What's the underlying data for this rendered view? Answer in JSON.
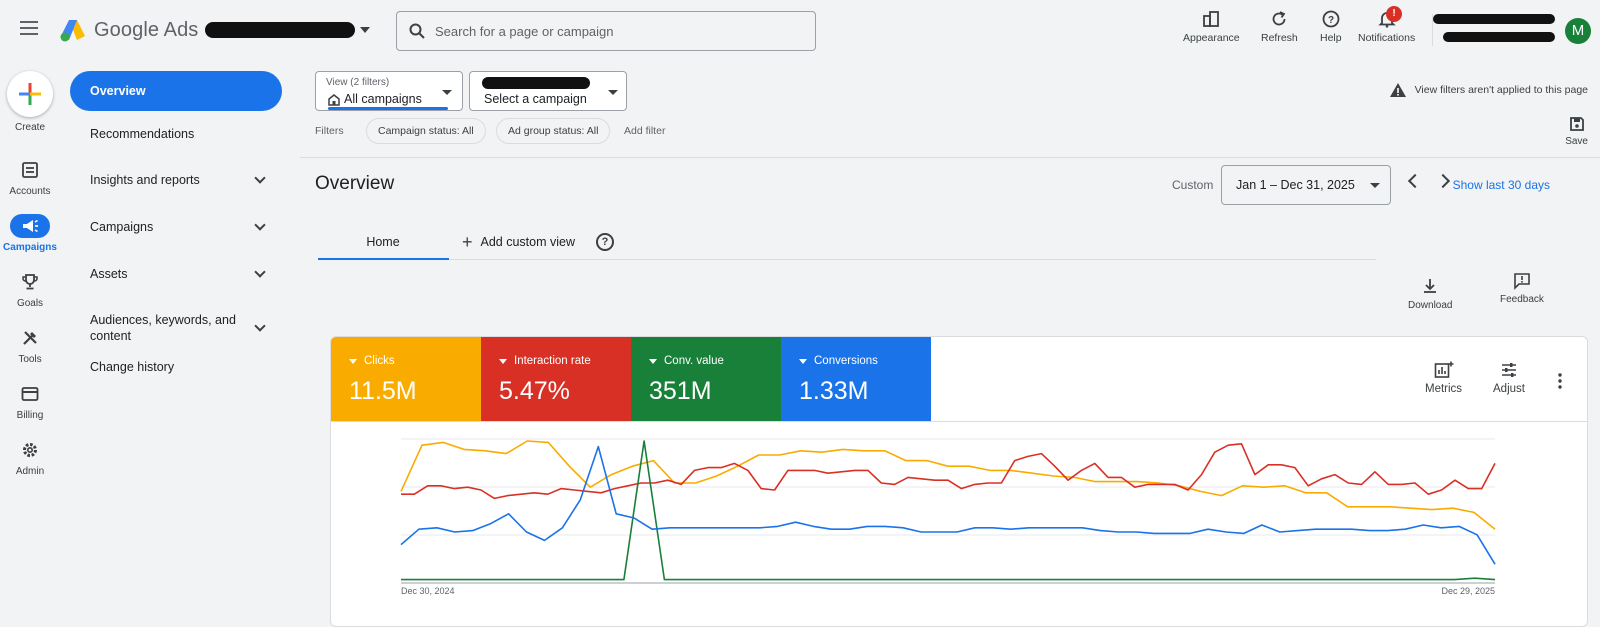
{
  "app": {
    "product_name": "Google Ads",
    "search_placeholder": "Search for a page or campaign",
    "user_initial": "M"
  },
  "top_actions": [
    {
      "label": "Appearance",
      "icon": "appearance-icon"
    },
    {
      "label": "Refresh",
      "icon": "refresh-icon"
    },
    {
      "label": "Help",
      "icon": "help-icon"
    },
    {
      "label": "Notifications",
      "icon": "bell-icon",
      "badge": "!"
    }
  ],
  "rail": [
    {
      "label": "Create",
      "icon": "plus-icon"
    },
    {
      "label": "Accounts",
      "icon": "accounts-icon"
    },
    {
      "label": "Campaigns",
      "icon": "megaphone-icon",
      "active": true
    },
    {
      "label": "Goals",
      "icon": "trophy-icon"
    },
    {
      "label": "Tools",
      "icon": "tools-icon"
    },
    {
      "label": "Billing",
      "icon": "credit-card-icon"
    },
    {
      "label": "Admin",
      "icon": "gear-icon"
    }
  ],
  "subnav": [
    {
      "label": "Overview",
      "active": true
    },
    {
      "label": "Recommendations"
    },
    {
      "label": "Insights and reports",
      "expandable": true
    },
    {
      "label": "Campaigns",
      "expandable": true
    },
    {
      "label": "Assets",
      "expandable": true
    },
    {
      "label": "Audiences, keywords, and content",
      "expandable": true
    },
    {
      "label": "Change history"
    }
  ],
  "view_selector": {
    "small_label": "View (2 filters)",
    "value": "All campaigns"
  },
  "campaign_selector": {
    "value": "Select a campaign"
  },
  "filters": {
    "label": "Filters",
    "chips": [
      "Campaign status: All",
      "Ad group status: All"
    ],
    "add_label": "Add filter"
  },
  "notice": "View filters aren't applied to this page",
  "save_label": "Save",
  "page": {
    "title": "Overview",
    "date_prefix": "Custom",
    "date_range": "Jan 1 – Dec 31, 2025",
    "show_last": "Show last 30 days"
  },
  "tabs": {
    "home": "Home",
    "add_custom": "Add custom view"
  },
  "tools": {
    "download": "Download",
    "feedback": "Feedback"
  },
  "metrics": [
    {
      "label": "Clicks",
      "value": "11.5M",
      "color": "#f9ab00"
    },
    {
      "label": "Interaction rate",
      "value": "5.47%",
      "color": "#d93025"
    },
    {
      "label": "Conv. value",
      "value": "351M",
      "color": "#188038"
    },
    {
      "label": "Conversions",
      "value": "1.33M",
      "color": "#1a73e8"
    }
  ],
  "card_actions": {
    "metrics": "Metrics",
    "adjust": "Adjust"
  },
  "chart_data": {
    "type": "line",
    "x_start_label": "Dec 30, 2024",
    "x_end_label": "Dec 29, 2025",
    "grid": true,
    "series": [
      {
        "name": "Clicks",
        "color": "#f9ab00",
        "values": [
          64,
          97,
          99,
          94,
          93,
          91,
          100,
          99,
          82,
          67,
          76,
          82,
          86,
          70,
          70,
          75,
          82,
          90,
          90,
          93,
          92,
          94,
          93,
          93,
          86,
          86,
          82,
          82,
          79,
          79,
          77,
          75,
          74,
          71,
          71,
          71,
          70,
          68,
          64,
          61,
          68,
          67,
          68,
          63,
          63,
          53,
          53,
          53,
          52,
          51,
          52,
          49,
          37
        ]
      },
      {
        "name": "Interaction rate",
        "color": "#d93025",
        "values": [
          62,
          62,
          68,
          68,
          66,
          67,
          65,
          59,
          61,
          62,
          63,
          62,
          66,
          65,
          64,
          63,
          66,
          68,
          70,
          70,
          72,
          69,
          79,
          81,
          81,
          84,
          79,
          66,
          65,
          79,
          79,
          79,
          77,
          78,
          79,
          79,
          70,
          69,
          74,
          73,
          72,
          72,
          66,
          69,
          70,
          70,
          86,
          89,
          91,
          82,
          72,
          79,
          84,
          74,
          74,
          67,
          69,
          69,
          69,
          65,
          76,
          92,
          97,
          98,
          76,
          83,
          83,
          81,
          68,
          73,
          76,
          70,
          69,
          78,
          69,
          69,
          70,
          62,
          65,
          72,
          66,
          66,
          84
        ]
      },
      {
        "name": "Conv. value",
        "color": "#188038",
        "values": [
          1,
          1,
          1,
          1,
          1,
          1,
          1,
          1,
          1,
          1,
          1,
          1,
          100,
          1,
          1,
          1,
          1,
          1,
          1,
          1,
          1,
          1,
          1,
          1,
          1,
          1,
          1,
          1,
          1,
          1,
          1,
          1,
          1,
          1,
          1,
          1,
          1,
          1,
          1,
          1,
          1,
          1,
          1,
          1,
          1,
          1,
          1,
          1,
          1,
          1,
          1,
          1,
          1,
          2,
          1
        ]
      },
      {
        "name": "Conversions",
        "color": "#1a73e8",
        "values": [
          26,
          37,
          38,
          35,
          36,
          41,
          48,
          35,
          29,
          38,
          58,
          96,
          48,
          45,
          37,
          38,
          38,
          38,
          38,
          38,
          38,
          39,
          42,
          39,
          37,
          37,
          39,
          39,
          38,
          35,
          35,
          35,
          38,
          38,
          37,
          38,
          38,
          38,
          38,
          36,
          35,
          35,
          34,
          34,
          34,
          37,
          35,
          34,
          40,
          35,
          36,
          37,
          37,
          37,
          36,
          36,
          37,
          40,
          38,
          39,
          33,
          12
        ]
      }
    ]
  }
}
